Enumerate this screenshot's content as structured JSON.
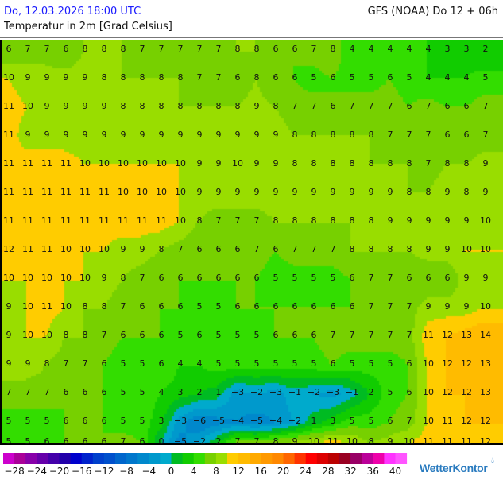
{
  "header": {
    "valid_time": "Do, 12.03.2026 18:00 UTC",
    "model_run": "GFS (NOAA) Do 12 + 06h",
    "parameter": "Temperatur in 2m [Grad Celsius]"
  },
  "map": {
    "field": "2m temperature",
    "unit": "°C",
    "values": [
      [
        6,
        7,
        7,
        6,
        8,
        8,
        8,
        7,
        7,
        7,
        7,
        7,
        8,
        8,
        6,
        6,
        7,
        8,
        4,
        4,
        4,
        4,
        4,
        3,
        3,
        2
      ],
      [
        10,
        9,
        9,
        9,
        9,
        8,
        8,
        8,
        8,
        8,
        7,
        7,
        6,
        8,
        6,
        6,
        5,
        6,
        5,
        5,
        6,
        5,
        4,
        4,
        4,
        5
      ],
      [
        11,
        10,
        9,
        9,
        9,
        9,
        8,
        8,
        8,
        8,
        8,
        8,
        8,
        9,
        8,
        7,
        7,
        6,
        7,
        7,
        7,
        6,
        7,
        6,
        6,
        7
      ],
      [
        11,
        9,
        9,
        9,
        9,
        9,
        9,
        9,
        9,
        9,
        9,
        9,
        9,
        9,
        9,
        8,
        8,
        8,
        8,
        8,
        7,
        7,
        7,
        6,
        6,
        7
      ],
      [
        11,
        11,
        11,
        11,
        10,
        10,
        10,
        10,
        10,
        10,
        9,
        9,
        10,
        9,
        9,
        8,
        8,
        8,
        8,
        8,
        8,
        8,
        7,
        8,
        8,
        9
      ],
      [
        11,
        11,
        11,
        11,
        11,
        11,
        10,
        10,
        10,
        10,
        9,
        9,
        9,
        9,
        9,
        9,
        9,
        9,
        9,
        9,
        9,
        8,
        8,
        9,
        8,
        9
      ],
      [
        11,
        11,
        11,
        11,
        11,
        11,
        11,
        11,
        11,
        10,
        8,
        7,
        7,
        7,
        8,
        8,
        8,
        8,
        8,
        8,
        9,
        9,
        9,
        9,
        9,
        10
      ],
      [
        12,
        11,
        11,
        10,
        10,
        10,
        9,
        9,
        8,
        7,
        6,
        6,
        6,
        7,
        6,
        7,
        7,
        7,
        8,
        8,
        8,
        8,
        9,
        9,
        10,
        10
      ],
      [
        10,
        10,
        10,
        10,
        10,
        9,
        8,
        7,
        6,
        6,
        6,
        6,
        6,
        6,
        5,
        5,
        5,
        5,
        6,
        7,
        7,
        6,
        6,
        6,
        9,
        9
      ],
      [
        9,
        10,
        11,
        10,
        8,
        8,
        7,
        6,
        6,
        6,
        5,
        5,
        6,
        6,
        6,
        6,
        6,
        6,
        6,
        7,
        7,
        7,
        9,
        9,
        9,
        10
      ],
      [
        9,
        10,
        10,
        8,
        8,
        7,
        6,
        6,
        6,
        5,
        6,
        5,
        5,
        5,
        6,
        6,
        6,
        7,
        7,
        7,
        7,
        7,
        11,
        12,
        13,
        14
      ],
      [
        9,
        9,
        8,
        7,
        7,
        6,
        5,
        5,
        6,
        4,
        4,
        5,
        5,
        5,
        5,
        5,
        5,
        6,
        5,
        5,
        5,
        6,
        10,
        12,
        12,
        13
      ],
      [
        7,
        7,
        7,
        6,
        6,
        6,
        5,
        5,
        4,
        3,
        2,
        1,
        -3,
        -2,
        -3,
        -1,
        -2,
        -3,
        -1,
        2,
        5,
        6,
        10,
        12,
        12,
        13
      ],
      [
        5,
        5,
        5,
        6,
        6,
        6,
        5,
        5,
        3,
        -3,
        -6,
        -5,
        -4,
        -5,
        -4,
        -2,
        1,
        3,
        5,
        5,
        6,
        7,
        10,
        11,
        12,
        12
      ],
      [
        5,
        5,
        6,
        6,
        6,
        6,
        7,
        6,
        0,
        -5,
        -2,
        2,
        7,
        7,
        8,
        9,
        10,
        11,
        10,
        8,
        9,
        10,
        11,
        11,
        11,
        12
      ]
    ]
  },
  "legend": {
    "min": -30,
    "step": 2,
    "colors": [
      "#cc00cc",
      "#aa0099",
      "#8800aa",
      "#6600aa",
      "#4400aa",
      "#2200aa",
      "#0000cc",
      "#0022cc",
      "#0040cc",
      "#0050cc",
      "#0066cc",
      "#0077cc",
      "#0088cc",
      "#0099cc",
      "#00aacc",
      "#00bb22",
      "#11cc00",
      "#33dd00",
      "#77d000",
      "#99dd00",
      "#ffcc00",
      "#ffbb00",
      "#ffaa00",
      "#ff9900",
      "#ff8800",
      "#ff6600",
      "#ff3300",
      "#ff0000",
      "#dd0000",
      "#bb0000",
      "#990022",
      "#990066",
      "#bb0099",
      "#ee00aa",
      "#ff33ff",
      "#ff55ff"
    ],
    "labels": [
      "−28",
      "−24",
      "−20",
      "−16",
      "−12",
      "−8",
      "−4",
      "0",
      "4",
      "8",
      "12",
      "16",
      "20",
      "24",
      "28",
      "32",
      "36",
      "40"
    ]
  },
  "branding": {
    "logo_text": "WetterKontor"
  }
}
